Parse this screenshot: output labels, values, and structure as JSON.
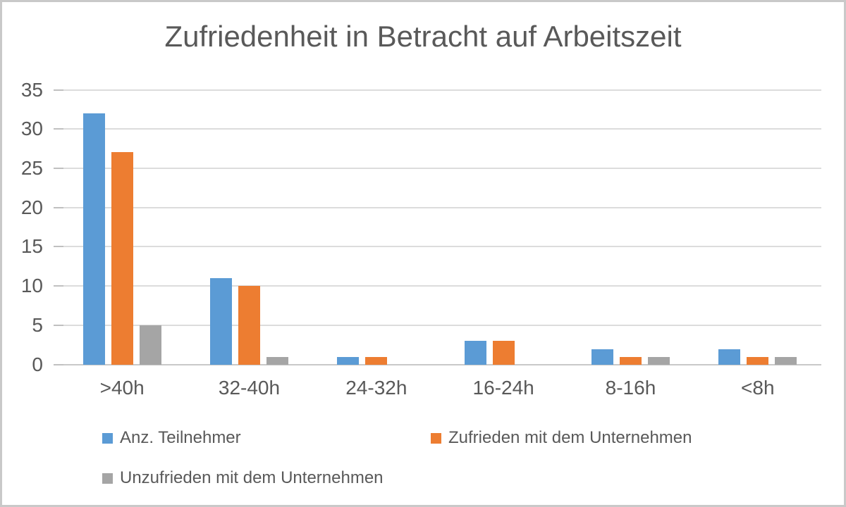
{
  "window": {
    "background_color": "#FFFFFF",
    "border_color": "#C9C9C9",
    "text_color": "#595959",
    "gridline_color": "#DCDCDC",
    "axis_line_color": "#C9C9C9"
  },
  "chart_data": {
    "type": "bar",
    "title": "Zufriedenheit in Betracht auf Arbeitszeit",
    "xlabel": "",
    "ylabel": "",
    "categories": [
      ">40h",
      "32-40h",
      "24-32h",
      "16-24h",
      "8-16h",
      "<8h"
    ],
    "series": [
      {
        "name": "Anz. Teilnehmer",
        "color": "#5B9BD5",
        "values": [
          32,
          11,
          1,
          3,
          2,
          2
        ]
      },
      {
        "name": "Zufrieden mit dem Unternehmen",
        "color": "#ED7D31",
        "values": [
          27,
          10,
          1,
          3,
          1,
          1
        ]
      },
      {
        "name": "Unzufrieden mit dem Unternehmen",
        "color": "#A5A5A5",
        "values": [
          5,
          1,
          0,
          0,
          1,
          1
        ]
      }
    ],
    "ylim": [
      0,
      35
    ],
    "yticks": [
      0,
      5,
      10,
      15,
      20,
      25,
      30,
      35
    ],
    "grid": true,
    "legend_position": "bottom-left-two-rows"
  }
}
